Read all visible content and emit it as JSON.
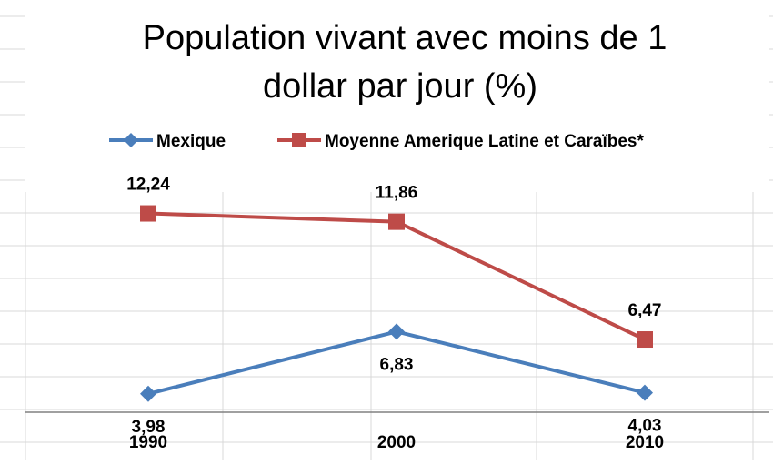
{
  "chart_data": {
    "type": "line",
    "title_lines": [
      "Population vivant avec moins de 1",
      "dollar par jour (%)"
    ],
    "categories": [
      "1990",
      "2000",
      "2010"
    ],
    "series": [
      {
        "name": "Mexique",
        "values": [
          3.98,
          6.83,
          4.03
        ],
        "labels": [
          "3,98",
          "6,83",
          "4,03"
        ],
        "color": "#4a7ebb",
        "marker": "diamond"
      },
      {
        "name": "Moyenne Amerique Latine et Caraïbes*",
        "values": [
          12.24,
          11.86,
          6.47
        ],
        "labels": [
          "12,24",
          "11,86",
          "6,47"
        ],
        "color": "#be4b48",
        "marker": "square"
      }
    ],
    "ylim": [
      0,
      16
    ],
    "gridlines": false,
    "legend_position": "top",
    "background_colors": {
      "sheet": "#ffffff",
      "sheet_grid": "#d9d9d9",
      "axis": "#808080"
    }
  }
}
